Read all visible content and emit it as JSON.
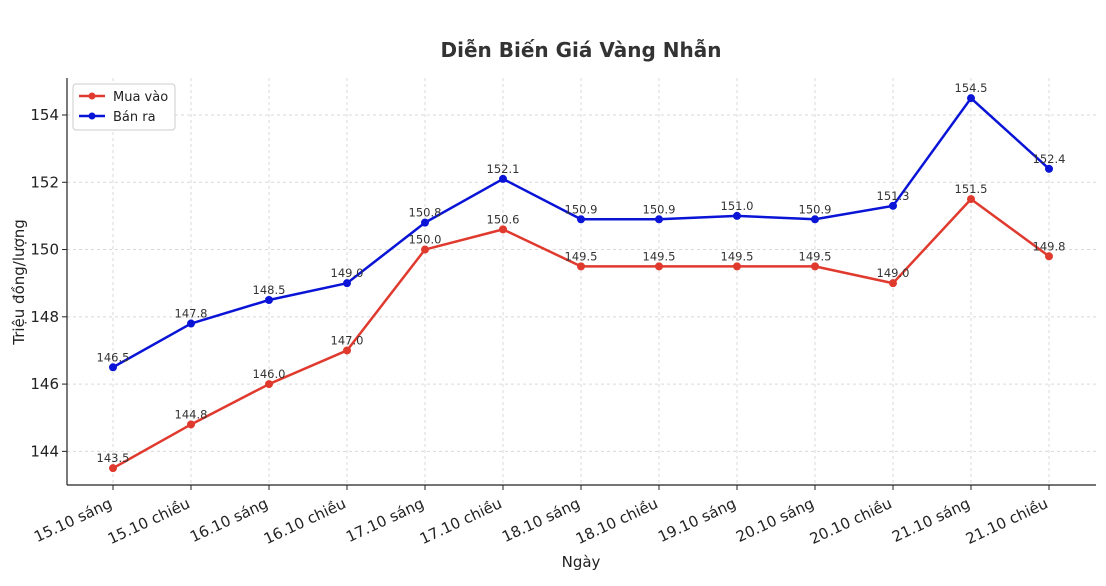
{
  "chart_data": {
    "type": "line",
    "title": "Diễn Biến Giá Vàng Nhẫn",
    "xlabel": "Ngày",
    "ylabel": "Triệu đồng/lượng",
    "ylim": [
      143.0,
      155.1
    ],
    "yticks": [
      144,
      146,
      148,
      150,
      152,
      154
    ],
    "grid": true,
    "legend_position": "top-left",
    "categories": [
      "15.10 sáng",
      "15.10 chiều",
      "16.10 sáng",
      "16.10 chiều",
      "17.10 sáng",
      "17.10 chiều",
      "18.10 sáng",
      "18.10 chiều",
      "19.10 sáng",
      "20.10 sáng",
      "20.10 chiều",
      "21.10 sáng",
      "21.10 chiều"
    ],
    "series": [
      {
        "name": "Mua vào",
        "color": "#e03a2f",
        "values": [
          143.5,
          144.8,
          146.0,
          147.0,
          150.0,
          150.6,
          149.5,
          149.5,
          149.5,
          149.5,
          149.0,
          151.5,
          149.8
        ],
        "labels": [
          "143.5",
          "144.8",
          "146.0",
          "147.0",
          "150.0",
          "150.6",
          "149.5",
          "149.5",
          "149.5",
          "149.5",
          "149.0",
          "151.5",
          "149.8"
        ]
      },
      {
        "name": "Bán ra",
        "color": "#0a14d6",
        "values": [
          146.5,
          147.8,
          148.5,
          149.0,
          150.8,
          152.1,
          150.9,
          150.9,
          151.0,
          150.9,
          151.3,
          154.5,
          152.4
        ],
        "labels": [
          "146.5",
          "147.8",
          "148.5",
          "149.0",
          "150.8",
          "152.1",
          "150.9",
          "150.9",
          "151.0",
          "150.9",
          "151.3",
          "154.5",
          "152.4"
        ]
      }
    ]
  }
}
